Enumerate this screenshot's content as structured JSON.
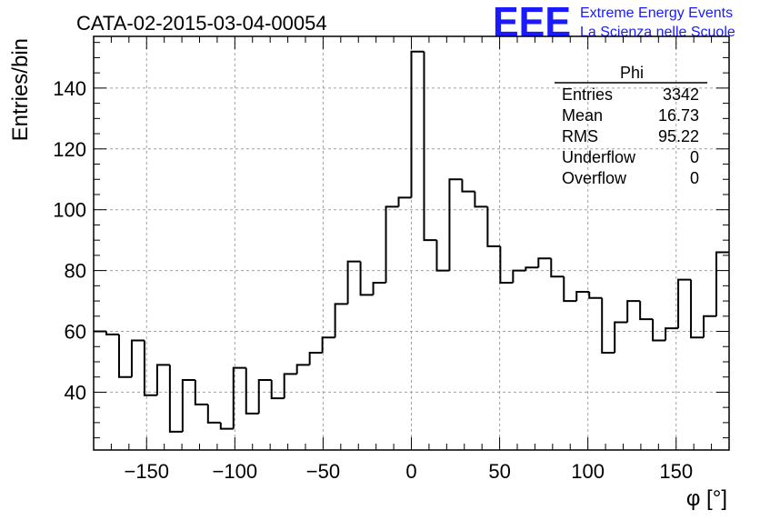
{
  "chart_data": {
    "type": "bar",
    "title": "CATA-02-2015-03-04-00054",
    "xlabel": "φ [°]",
    "ylabel": "Entries/bin",
    "xlim": [
      -180,
      180
    ],
    "ylim": [
      21,
      157
    ],
    "grid": true,
    "bin_width": 7.2,
    "bin_edges_start": -180,
    "values": [
      60,
      59,
      45,
      57,
      39,
      49,
      27,
      44,
      36,
      30,
      28,
      48,
      33,
      44,
      38,
      46,
      49,
      53,
      58,
      69,
      83,
      72,
      76,
      101,
      104,
      152,
      90,
      80,
      110,
      106,
      101,
      88,
      76,
      80,
      81,
      84,
      78,
      70,
      73,
      71,
      53,
      63,
      70,
      64,
      57,
      61,
      77,
      58,
      65,
      86
    ],
    "x_ticks": [
      -150,
      -100,
      -50,
      0,
      50,
      100,
      150
    ],
    "x_tick_labels": [
      "−150",
      "−100",
      "−50",
      "0",
      "50",
      "100",
      "150"
    ],
    "y_ticks": [
      40,
      60,
      80,
      100,
      120,
      140
    ],
    "y_tick_labels": [
      "40",
      "60",
      "80",
      "100",
      "120",
      "140"
    ]
  },
  "stats_box": {
    "name": "Phi",
    "rows": [
      {
        "label": "Entries",
        "value": "3342"
      },
      {
        "label": "Mean",
        "value": "16.73"
      },
      {
        "label": "RMS",
        "value": "95.22"
      },
      {
        "label": "Underflow",
        "value": "0"
      },
      {
        "label": "Overflow",
        "value": "0"
      }
    ]
  },
  "logo": {
    "mark": "EEE",
    "line1": "Extreme Energy Events",
    "line2": "La Scienza nelle Scuole",
    "color": "#1a1aff"
  }
}
